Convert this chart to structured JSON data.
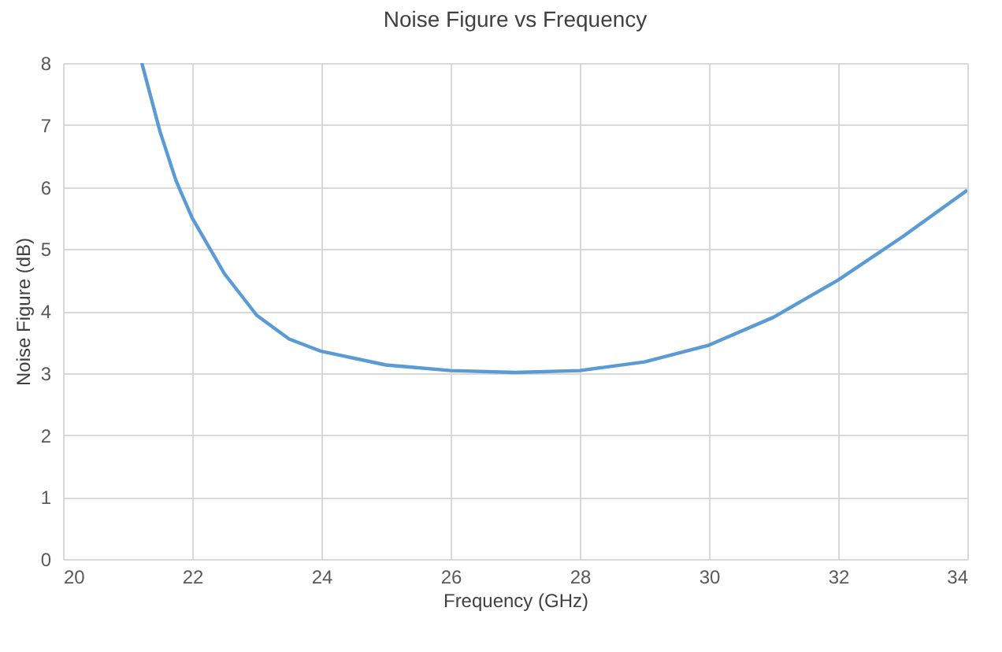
{
  "chart_data": {
    "type": "line",
    "title": "Noise Figure vs Frequency",
    "xlabel": "Frequency (GHz)",
    "ylabel": "Noise Figure (dB)",
    "x": [
      21.22,
      21.5,
      21.75,
      22,
      22.5,
      23,
      23.5,
      24,
      25,
      26,
      27,
      28,
      29,
      30,
      31,
      32,
      33,
      34
    ],
    "series": [
      {
        "color": "#5b9bd5",
        "values": [
          8,
          6.9,
          6.1,
          5.5,
          4.6,
          3.93,
          3.55,
          3.35,
          3.13,
          3.04,
          3.01,
          3.04,
          3.18,
          3.45,
          3.9,
          4.5,
          5.2,
          5.95
        ]
      }
    ],
    "xlim": [
      20,
      34
    ],
    "xticks": [
      20,
      22,
      24,
      26,
      28,
      30,
      32,
      34
    ],
    "ylim": [
      0,
      8
    ],
    "yticks": [
      0,
      1,
      2,
      3,
      4,
      5,
      6,
      7,
      8
    ],
    "grid": true,
    "marker": "none",
    "line_style": "solid"
  }
}
